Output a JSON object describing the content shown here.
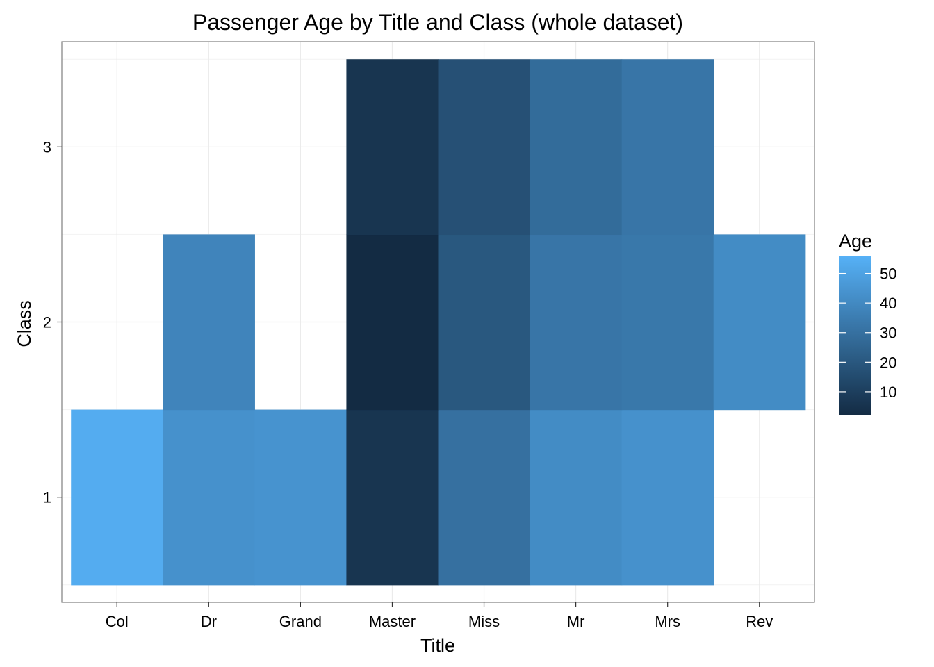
{
  "chart_data": {
    "type": "heatmap",
    "title": "Passenger Age by Title and Class (whole dataset)",
    "xlabel": "Title",
    "ylabel": "Class",
    "x_categories": [
      "Col",
      "Dr",
      "Grand",
      "Master",
      "Miss",
      "Mr",
      "Mrs",
      "Rev"
    ],
    "y_categories": [
      "1",
      "2",
      "3"
    ],
    "cells": [
      {
        "x": "Col",
        "y": "1",
        "value": 54
      },
      {
        "x": "Dr",
        "y": "1",
        "value": 43
      },
      {
        "x": "Grand",
        "y": "1",
        "value": 44
      },
      {
        "x": "Master",
        "y": "1",
        "value": 6
      },
      {
        "x": "Miss",
        "y": "1",
        "value": 30
      },
      {
        "x": "Mr",
        "y": "1",
        "value": 41
      },
      {
        "x": "Mrs",
        "y": "1",
        "value": 43
      },
      {
        "x": "Dr",
        "y": "2",
        "value": 38
      },
      {
        "x": "Master",
        "y": "2",
        "value": 2
      },
      {
        "x": "Miss",
        "y": "2",
        "value": 20
      },
      {
        "x": "Mr",
        "y": "2",
        "value": 32
      },
      {
        "x": "Mrs",
        "y": "2",
        "value": 33
      },
      {
        "x": "Rev",
        "y": "2",
        "value": 41
      },
      {
        "x": "Master",
        "y": "3",
        "value": 6
      },
      {
        "x": "Miss",
        "y": "3",
        "value": 17
      },
      {
        "x": "Mr",
        "y": "3",
        "value": 28
      },
      {
        "x": "Mrs",
        "y": "3",
        "value": 32
      }
    ],
    "legend": {
      "title": "Age",
      "position": "right",
      "ticks": [
        10,
        20,
        30,
        40,
        50
      ],
      "range": [
        2,
        56
      ],
      "color_low": "#132B43",
      "color_high": "#56B1F7"
    },
    "grid": true
  }
}
